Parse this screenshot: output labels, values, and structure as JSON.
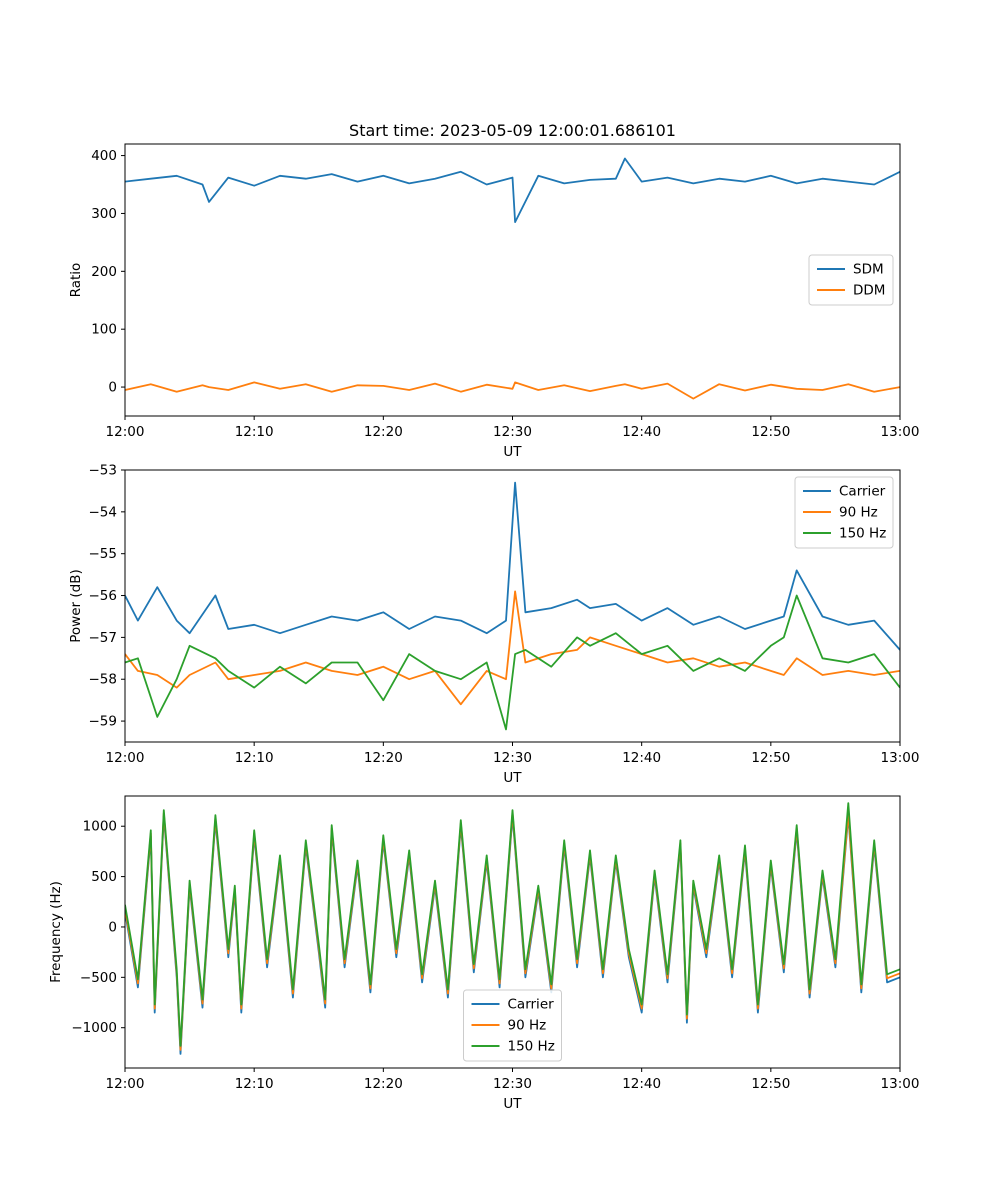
{
  "chart_data": [
    {
      "type": "line",
      "title": "Start time: 2023-05-09 12:00:01.686101",
      "xlabel": "UT",
      "ylabel": "Ratio",
      "xlim": [
        "12:00",
        "13:00"
      ],
      "ylim": [
        -50,
        420
      ],
      "xticks": [
        "12:00",
        "12:10",
        "12:20",
        "12:30",
        "12:40",
        "12:50",
        "13:00"
      ],
      "yticks": [
        0,
        100,
        200,
        300,
        400
      ],
      "grid": false,
      "legend_position": "center-right",
      "x_minutes": [
        0,
        2,
        4,
        6,
        6.5,
        8,
        10,
        12,
        14,
        16,
        18,
        20,
        22,
        24,
        26,
        28,
        30,
        30.2,
        32,
        34,
        36,
        38,
        38.7,
        40,
        42,
        44,
        46,
        48,
        50,
        52,
        54,
        56,
        58,
        60
      ],
      "series": [
        {
          "name": "SDM",
          "color": "#1f77b4",
          "values": [
            355,
            360,
            365,
            350,
            320,
            362,
            348,
            365,
            360,
            368,
            355,
            365,
            352,
            360,
            372,
            350,
            362,
            285,
            365,
            352,
            358,
            360,
            395,
            355,
            362,
            352,
            360,
            355,
            365,
            352,
            360,
            355,
            350,
            372
          ]
        },
        {
          "name": "DDM",
          "color": "#ff7f0e",
          "values": [
            -5,
            5,
            -8,
            3,
            0,
            -5,
            8,
            -3,
            5,
            -8,
            3,
            2,
            -5,
            6,
            -8,
            4,
            -3,
            8,
            -5,
            3,
            -7,
            2,
            5,
            -3,
            6,
            -20,
            5,
            -6,
            4,
            -3,
            -5,
            5,
            -8,
            0
          ]
        }
      ]
    },
    {
      "type": "line",
      "xlabel": "UT",
      "ylabel": "Power (dB)",
      "xlim": [
        "12:00",
        "13:00"
      ],
      "ylim": [
        -59.5,
        -53.0
      ],
      "xticks": [
        "12:00",
        "12:10",
        "12:20",
        "12:30",
        "12:40",
        "12:50",
        "13:00"
      ],
      "yticks": [
        -59,
        -58,
        -57,
        -56,
        -55,
        -54,
        -53
      ],
      "grid": false,
      "legend_position": "top-right",
      "x_minutes": [
        0,
        1,
        2.5,
        4,
        5,
        7,
        8,
        10,
        12,
        14,
        16,
        18,
        20,
        22,
        24,
        26,
        28,
        29.5,
        30.2,
        31,
        33,
        35,
        36,
        38,
        40,
        42,
        44,
        46,
        48,
        50,
        51,
        52,
        54,
        56,
        58,
        60
      ],
      "series": [
        {
          "name": "Carrier",
          "color": "#1f77b4",
          "values": [
            -56.0,
            -56.6,
            -55.8,
            -56.6,
            -56.9,
            -56.0,
            -56.8,
            -56.7,
            -56.9,
            -56.7,
            -56.5,
            -56.6,
            -56.4,
            -56.8,
            -56.5,
            -56.6,
            -56.9,
            -56.6,
            -53.3,
            -56.4,
            -56.3,
            -56.1,
            -56.3,
            -56.2,
            -56.6,
            -56.3,
            -56.7,
            -56.5,
            -56.8,
            -56.6,
            -56.5,
            -55.4,
            -56.5,
            -56.7,
            -56.6,
            -57.3
          ]
        },
        {
          "name": "90 Hz",
          "color": "#ff7f0e",
          "values": [
            -57.4,
            -57.8,
            -57.9,
            -58.2,
            -57.9,
            -57.6,
            -58.0,
            -57.9,
            -57.8,
            -57.6,
            -57.8,
            -57.9,
            -57.7,
            -58.0,
            -57.8,
            -58.6,
            -57.8,
            -58.0,
            -55.9,
            -57.6,
            -57.4,
            -57.3,
            -57.0,
            -57.2,
            -57.4,
            -57.6,
            -57.5,
            -57.7,
            -57.6,
            -57.8,
            -57.9,
            -57.5,
            -57.9,
            -57.8,
            -57.9,
            -57.8
          ]
        },
        {
          "name": "150 Hz",
          "color": "#2ca02c",
          "values": [
            -57.6,
            -57.5,
            -58.9,
            -58.0,
            -57.2,
            -57.5,
            -57.8,
            -58.2,
            -57.7,
            -58.1,
            -57.6,
            -57.6,
            -58.5,
            -57.4,
            -57.8,
            -58.0,
            -57.6,
            -59.2,
            -57.4,
            -57.3,
            -57.7,
            -57.0,
            -57.2,
            -56.9,
            -57.4,
            -57.2,
            -57.8,
            -57.5,
            -57.8,
            -57.2,
            -57.0,
            -56.0,
            -57.5,
            -57.6,
            -57.4,
            -58.2
          ]
        }
      ]
    },
    {
      "type": "line",
      "xlabel": "UT",
      "ylabel": "Frequency (Hz)",
      "xlim": [
        "12:00",
        "13:00"
      ],
      "ylim": [
        -1400,
        1300
      ],
      "xticks": [
        "12:00",
        "12:10",
        "12:20",
        "12:30",
        "12:40",
        "12:50",
        "13:00"
      ],
      "yticks": [
        -1000,
        -500,
        0,
        500,
        1000
      ],
      "grid": false,
      "legend_position": "lower-center",
      "x_minutes": [
        0,
        1,
        2,
        2.3,
        3,
        4,
        4.3,
        5,
        6,
        7,
        8,
        8.5,
        9,
        10,
        11,
        12,
        13,
        14,
        15,
        15.5,
        16,
        17,
        18,
        19,
        20,
        21,
        22,
        23,
        24,
        25,
        26,
        27,
        28,
        29,
        30,
        31,
        32,
        33,
        34,
        35,
        36,
        37,
        38,
        39,
        40,
        41,
        42,
        43,
        43.5,
        44,
        45,
        46,
        47,
        48,
        49,
        50,
        51,
        52,
        53,
        54,
        55,
        56,
        57,
        58,
        59,
        60
      ],
      "series": [
        {
          "name": "Carrier",
          "color": "#1f77b4",
          "values": [
            150,
            -600,
            900,
            -850,
            1100,
            -500,
            -1260,
            400,
            -800,
            1050,
            -300,
            350,
            -850,
            900,
            -400,
            650,
            -700,
            800,
            -250,
            -800,
            950,
            -400,
            600,
            -650,
            850,
            -300,
            700,
            -550,
            400,
            -700,
            1000,
            -450,
            650,
            -600,
            1100,
            -500,
            350,
            -650,
            800,
            -400,
            700,
            -500,
            650,
            -300,
            -850,
            500,
            -550,
            800,
            -950,
            400,
            -300,
            650,
            -500,
            750,
            -850,
            600,
            -450,
            950,
            -700,
            500,
            -400,
            1100,
            -650,
            800,
            -550,
            -500
          ]
        },
        {
          "name": "90 Hz",
          "color": "#ff7f0e",
          "values": [
            180,
            -560,
            930,
            -810,
            1130,
            -460,
            -1220,
            430,
            -760,
            1080,
            -260,
            380,
            -810,
            930,
            -360,
            680,
            -660,
            830,
            -210,
            -760,
            980,
            -360,
            630,
            -610,
            880,
            -260,
            730,
            -510,
            430,
            -660,
            1030,
            -410,
            680,
            -560,
            1130,
            -460,
            380,
            -610,
            830,
            -360,
            730,
            -460,
            680,
            -260,
            -810,
            530,
            -510,
            830,
            -910,
            430,
            -260,
            680,
            -460,
            780,
            -810,
            630,
            -410,
            980,
            -660,
            530,
            -360,
            1130,
            -610,
            830,
            -510,
            -460
          ]
        },
        {
          "name": "150 Hz",
          "color": "#2ca02c",
          "values": [
            220,
            -520,
            960,
            -770,
            1160,
            -420,
            -1180,
            460,
            -720,
            1110,
            -220,
            410,
            -770,
            960,
            -320,
            710,
            -620,
            860,
            -170,
            -720,
            1010,
            -320,
            660,
            -570,
            910,
            -220,
            760,
            -470,
            460,
            -620,
            1060,
            -370,
            710,
            -520,
            1160,
            -420,
            410,
            -570,
            860,
            -320,
            760,
            -420,
            710,
            -220,
            -770,
            560,
            -470,
            860,
            -870,
            460,
            -220,
            710,
            -420,
            810,
            -770,
            660,
            -370,
            1010,
            -620,
            560,
            -320,
            1230,
            -570,
            860,
            -470,
            -420
          ]
        }
      ]
    }
  ]
}
